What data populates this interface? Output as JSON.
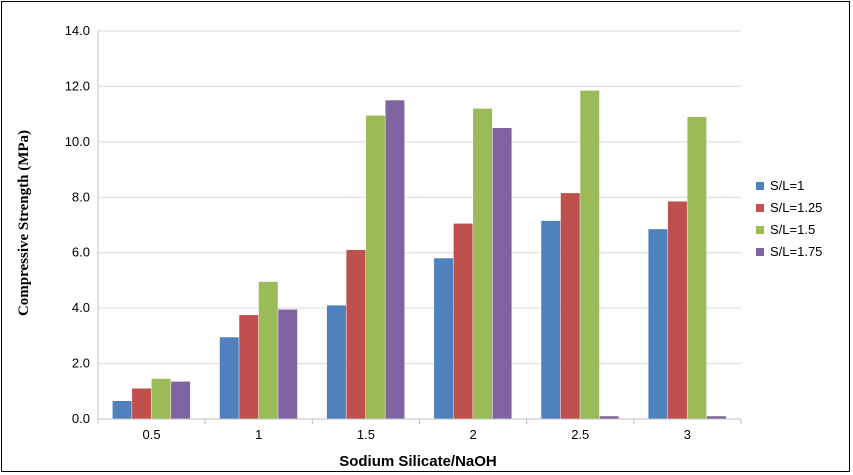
{
  "chart_data": {
    "type": "bar",
    "xlabel": "Sodium Silicate/NaOH",
    "ylabel": "Compressive Strength (MPa)",
    "categories": [
      "0.5",
      "1",
      "1.5",
      "2",
      "2.5",
      "3"
    ],
    "ylim": [
      0,
      14
    ],
    "yticks": [
      "0.0",
      "2.0",
      "4.0",
      "6.0",
      "8.0",
      "10.0",
      "12.0",
      "14.0"
    ],
    "grid": "horizontal",
    "legend": "right",
    "series": [
      {
        "name": "S/L=1",
        "color": "#4F81BD",
        "values": [
          0.65,
          2.95,
          4.1,
          5.8,
          7.15,
          6.85
        ]
      },
      {
        "name": "S/L=1.25",
        "color": "#C0504D",
        "values": [
          1.1,
          3.75,
          6.1,
          7.05,
          8.15,
          7.85
        ]
      },
      {
        "name": "S/L=1.5",
        "color": "#9BBB59",
        "values": [
          1.45,
          4.95,
          10.95,
          11.2,
          11.85,
          10.9
        ]
      },
      {
        "name": "S/L=1.75",
        "color": "#8064A2",
        "values": [
          1.35,
          3.95,
          11.5,
          10.5,
          0.1,
          0.1
        ]
      }
    ]
  }
}
